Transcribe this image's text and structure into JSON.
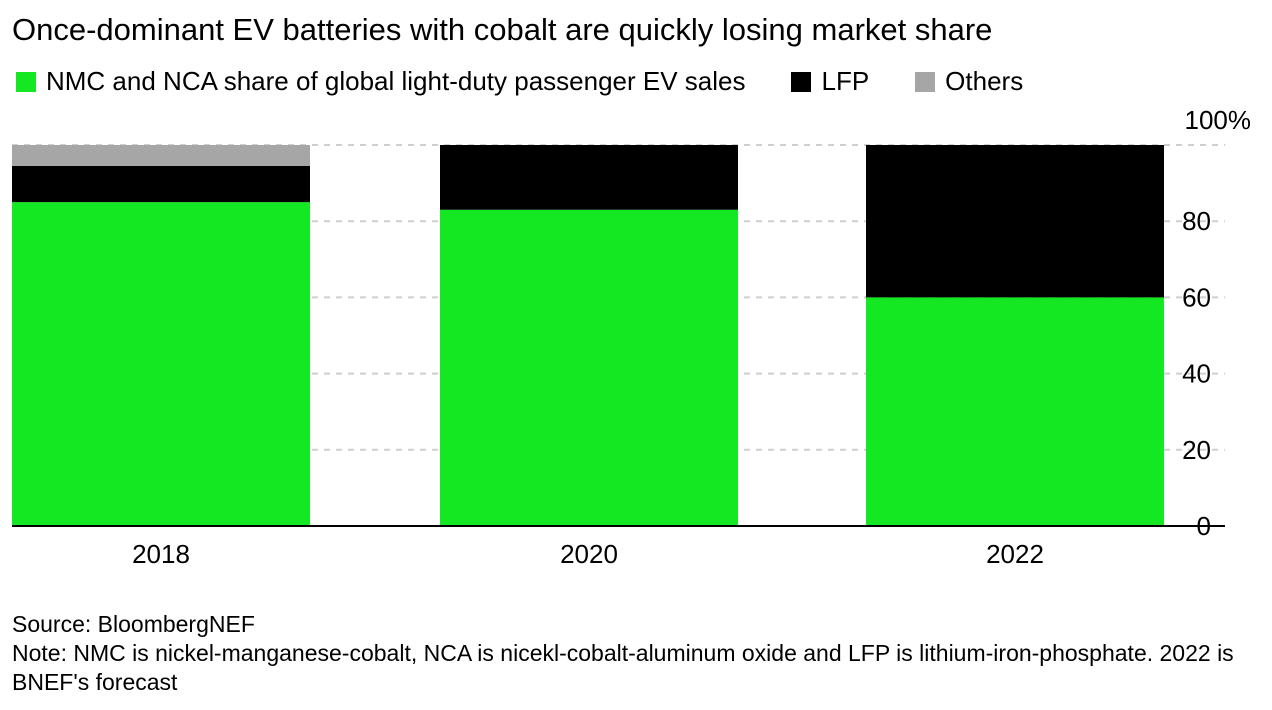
{
  "title": "Once-dominant EV batteries with cobalt are quickly losing market share",
  "legend": [
    {
      "label": "NMC and NCA share of global light-duty passenger EV sales",
      "color": "#13e822"
    },
    {
      "label": "LFP",
      "color": "#000000"
    },
    {
      "label": "Others",
      "color": "#a6a6a6"
    }
  ],
  "chart_data": {
    "type": "bar",
    "stacked": true,
    "categories": [
      "2018",
      "2020",
      "2022"
    ],
    "series": [
      {
        "name": "NMC and NCA share of global light-duty passenger EV sales",
        "color": "#13e822",
        "values": [
          85,
          83,
          60
        ]
      },
      {
        "name": "LFP",
        "color": "#000000",
        "values": [
          9.5,
          17,
          40
        ]
      },
      {
        "name": "Others",
        "color": "#a6a6a6",
        "values": [
          5.5,
          0,
          0
        ]
      }
    ],
    "ylim": [
      0,
      100
    ],
    "y_ticks": [
      0,
      20,
      40,
      60,
      80,
      100
    ],
    "y_tick_labels": [
      "0",
      "20",
      "40",
      "60",
      "80",
      "100%"
    ],
    "y_axis_position": "right",
    "grid": true,
    "legend_position": "top-left"
  },
  "footer": {
    "source": "Source: BloombergNEF",
    "note": "Note: NMC is nickel-manganese-cobalt, NCA is nicekl-cobalt-aluminum oxide and LFP is lithium-iron-phosphate. 2022 is BNEF's forecast"
  }
}
